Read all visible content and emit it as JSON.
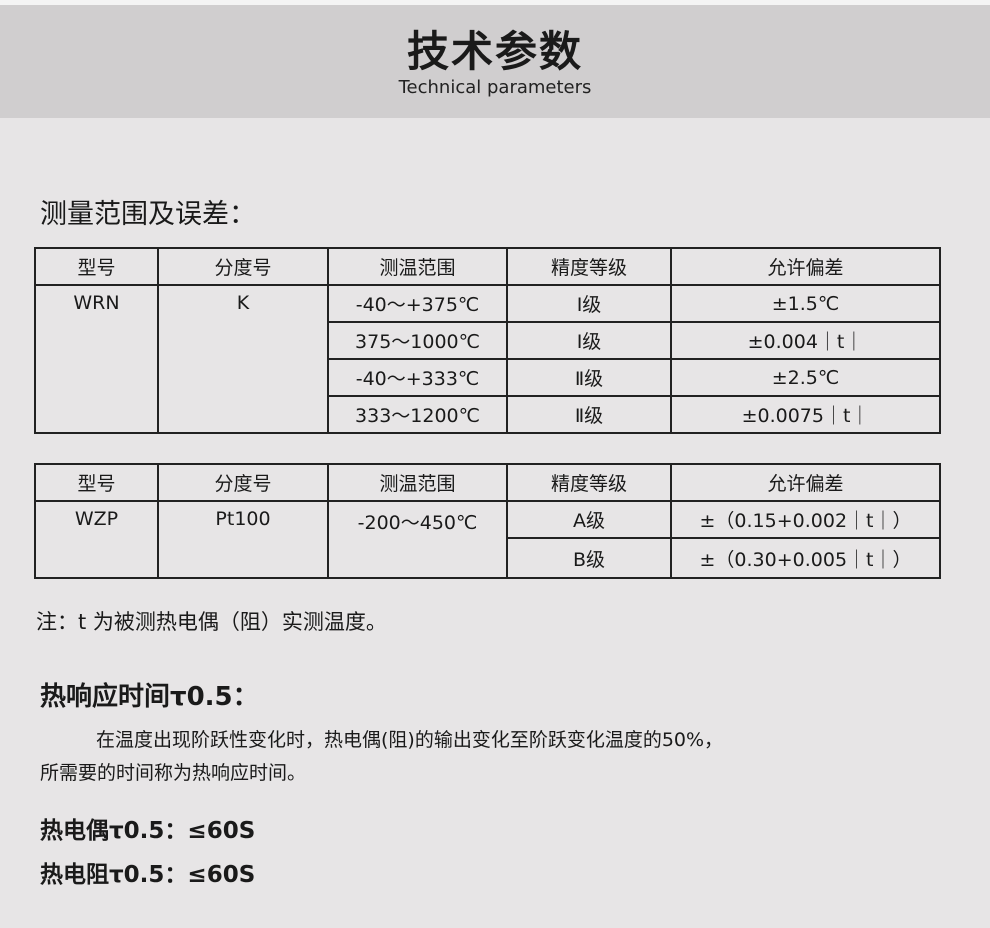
{
  "header": {
    "title": "技术参数",
    "subtitle": "Technical parameters"
  },
  "section1": {
    "heading": "测量范围及误差："
  },
  "columns": [
    "型号",
    "分度号",
    "测温范围",
    "精度等级",
    "允许偏差"
  ],
  "table1": {
    "model": "WRN",
    "graduation": "K",
    "rows": [
      {
        "range": "-40～+375℃",
        "grade": "Ⅰ级",
        "tolerance": "±1.5℃"
      },
      {
        "range": "375～1000℃",
        "grade": "Ⅰ级",
        "tolerance": "±0.004｜t｜"
      },
      {
        "range": "-40～+333℃",
        "grade": "Ⅱ级",
        "tolerance": "±2.5℃"
      },
      {
        "range": "333～1200℃",
        "grade": "Ⅱ级",
        "tolerance": "±0.0075｜t｜"
      }
    ]
  },
  "table2": {
    "model": "WZP",
    "graduation": "Pt100",
    "range": "-200～450℃",
    "rows": [
      {
        "grade": "A级",
        "tolerance": "±（0.15+0.002｜t｜）"
      },
      {
        "grade": "B级",
        "tolerance": "±（0.30+0.005｜t｜）"
      }
    ]
  },
  "note": "注：t 为被测热电偶（阻）实测温度。",
  "section2": {
    "heading": "热响应时间τ0.5：",
    "paragraph_line1": "在温度出现阶跃性变化时，热电偶(阻)的输出变化至阶跃变化温度的50%，",
    "paragraph_line2": "所需要的时间称为热响应时间。",
    "spec1": "热电偶τ0.5：≤60S",
    "spec2": "热电阻τ0.5：≤60S"
  }
}
